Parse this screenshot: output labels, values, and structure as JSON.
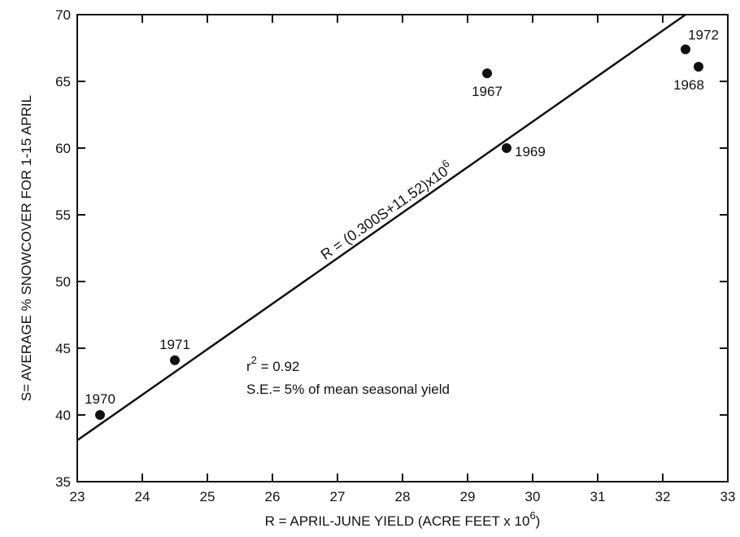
{
  "chart_data": {
    "type": "scatter",
    "xlabel": "R = APRIL-JUNE YIELD (ACRE FEET x 10",
    "xlabel_sup": "6",
    "xlabel_close": ")",
    "ylabel": "S= AVERAGE % SNOWCOVER FOR 1-15 APRIL",
    "xlim": [
      23,
      33
    ],
    "ylim": [
      35,
      70
    ],
    "xticks": [
      "23",
      "24",
      "25",
      "26",
      "27",
      "28",
      "29",
      "30",
      "31",
      "32",
      "33"
    ],
    "yticks": [
      "35",
      "40",
      "45",
      "50",
      "55",
      "60",
      "65",
      "70"
    ],
    "points": [
      {
        "label": "1970",
        "x": 23.35,
        "y": 40.0
      },
      {
        "label": "1971",
        "x": 24.5,
        "y": 44.1
      },
      {
        "label": "1967",
        "x": 29.3,
        "y": 65.6
      },
      {
        "label": "1969",
        "x": 29.6,
        "y": 60.0
      },
      {
        "label": "1972",
        "x": 32.35,
        "y": 67.4
      },
      {
        "label": "1968",
        "x": 32.55,
        "y": 66.1
      }
    ],
    "regression": {
      "x": [
        23,
        32.35
      ],
      "y": [
        38.1,
        70.0
      ],
      "equation": "R = (0.300S+11.52)x10",
      "equation_sup": "6"
    },
    "annotations": {
      "r2_prefix": "r",
      "r2_sup": "2",
      "r2_value": " = 0.92",
      "se": "S.E.= 5% of mean seasonal yield"
    }
  }
}
